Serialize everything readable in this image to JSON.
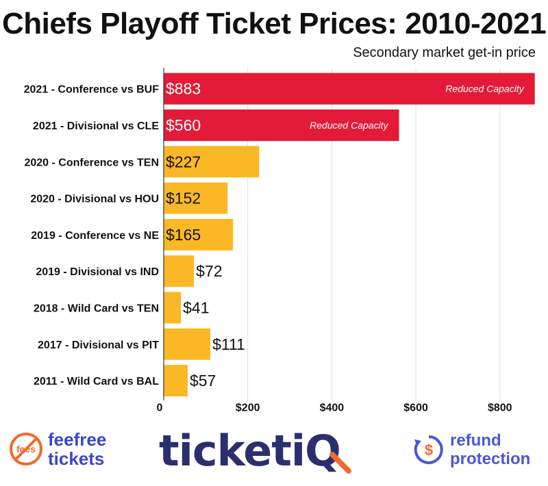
{
  "chart_data": {
    "type": "bar",
    "orientation": "horizontal",
    "title": "Chiefs Playoff Ticket Prices: 2010-2021",
    "subtitle": "Secondary market get-in price",
    "categories": [
      "2021 - Conference vs BUF",
      "2021 - Divisional vs CLE",
      "2020 - Conference vs TEN",
      "2020 - Divisional vs HOU",
      "2019 - Conference vs NE",
      "2019 - Divisional vs IND",
      "2018 - Wild Card vs TEN",
      "2017 - Divisional vs PIT",
      "2011 - Wild Card vs BAL"
    ],
    "values": [
      883,
      560,
      227,
      152,
      165,
      72,
      41,
      111,
      57
    ],
    "value_labels": [
      "$883",
      "$560",
      "$227",
      "$152",
      "$165",
      "$72",
      "$41",
      "$111",
      "$57"
    ],
    "annotations": [
      "Reduced Capacity",
      "Reduced Capacity",
      "",
      "",
      "",
      "",
      "",
      "",
      ""
    ],
    "bar_colors": [
      "#e31b38",
      "#e31b38",
      "#fbb826",
      "#fbb826",
      "#fbb826",
      "#fbb826",
      "#fbb826",
      "#fbb826",
      "#fbb826"
    ],
    "xlim": [
      0,
      890
    ],
    "xticks": [
      0,
      200,
      400,
      600,
      800
    ],
    "xtick_labels": [
      "0",
      "$200",
      "$400",
      "$600",
      "$800"
    ],
    "grid": true,
    "grid_color": "#dddddd"
  },
  "footer": {
    "feefree_line1": "feefree",
    "feefree_line2": "tickets",
    "feefree_icon_text": "fees",
    "ticketiq_text": "ticketiQ",
    "refund_line1": "refund",
    "refund_line2": "protection",
    "colors": {
      "orange": "#f26a2e",
      "navy": "#2b2f6e",
      "blue": "#4a56d8"
    }
  }
}
